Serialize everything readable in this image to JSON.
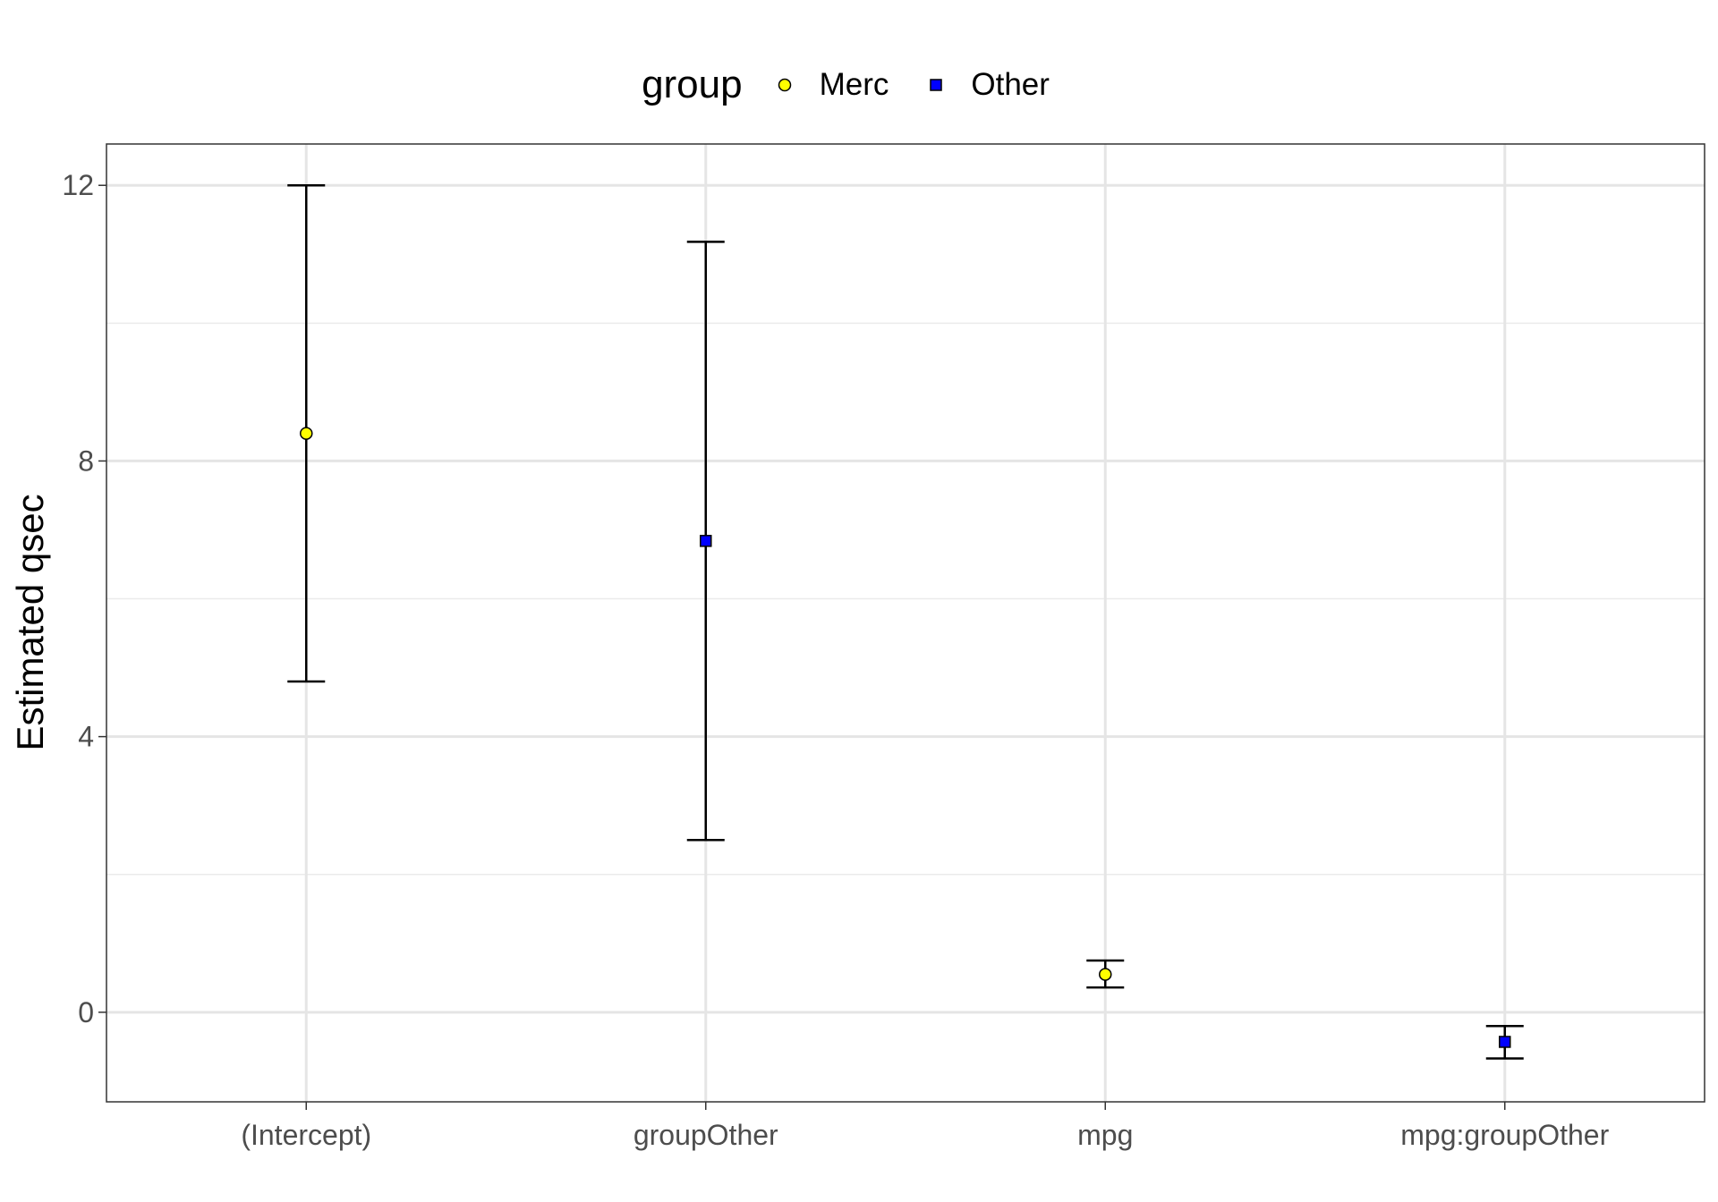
{
  "legend": {
    "title": "group",
    "items": [
      {
        "label": "Merc",
        "shape": "circle",
        "fill": "#FFFF00"
      },
      {
        "label": "Other",
        "shape": "square",
        "fill": "#0000FF"
      }
    ]
  },
  "chart_data": {
    "type": "scatter",
    "subtype": "point-estimate-with-error-bars",
    "title": "",
    "xlabel": "",
    "ylabel": "Estimated qsec",
    "categories": [
      "(Intercept)",
      "groupOther",
      "mpg",
      "mpg:groupOther"
    ],
    "ylim": [
      -1.3,
      12.6
    ],
    "yticks": [
      0,
      4,
      8,
      12
    ],
    "yticks_labels": [
      "0",
      "4",
      "8",
      "12"
    ],
    "grid": true,
    "legend_position": "top",
    "points": [
      {
        "category": "(Intercept)",
        "group": "Merc",
        "estimate": 8.4,
        "lower": 4.8,
        "upper": 12.0
      },
      {
        "category": "groupOther",
        "group": "Other",
        "estimate": 6.84,
        "lower": 2.5,
        "upper": 11.18
      },
      {
        "category": "mpg",
        "group": "Merc",
        "estimate": 0.55,
        "lower": 0.36,
        "upper": 0.75
      },
      {
        "category": "mpg:groupOther",
        "group": "Other",
        "estimate": -0.43,
        "lower": -0.67,
        "upper": -0.2
      }
    ],
    "group_colors": {
      "Merc": "#FFFF00",
      "Other": "#0000FF"
    }
  }
}
